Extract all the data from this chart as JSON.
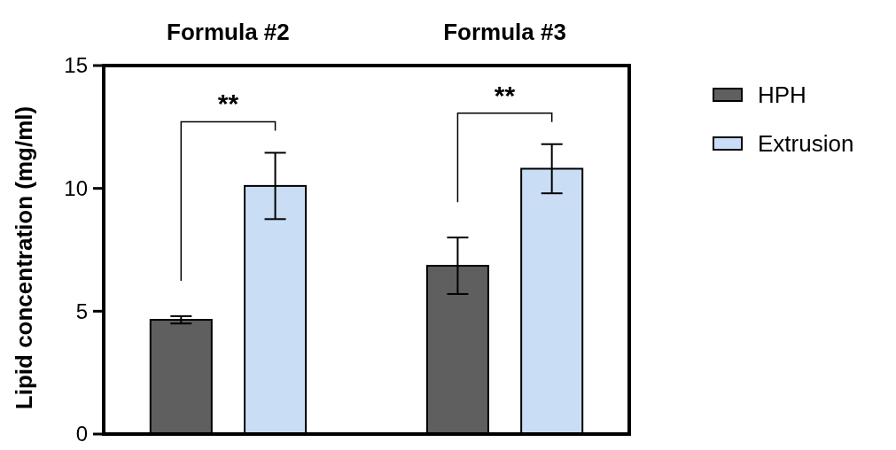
{
  "chart_data": {
    "type": "bar",
    "ylabel": "Lipid concentration (mg/ml)",
    "categories": [
      "Formula #2",
      "Formula #3"
    ],
    "series": [
      {
        "name": "HPH",
        "color": "#5f5f5f",
        "values": [
          4.65,
          6.85
        ],
        "errors": [
          0.15,
          1.15
        ]
      },
      {
        "name": "Extrusion",
        "color": "#c9ddf5",
        "values": [
          10.1,
          10.8
        ],
        "errors": [
          1.35,
          1.0
        ]
      }
    ],
    "ylim": [
      0,
      15
    ],
    "yticks": [
      0,
      5,
      10,
      15
    ],
    "legend": "right",
    "grid": false,
    "annotations": [
      "**",
      "**"
    ]
  }
}
